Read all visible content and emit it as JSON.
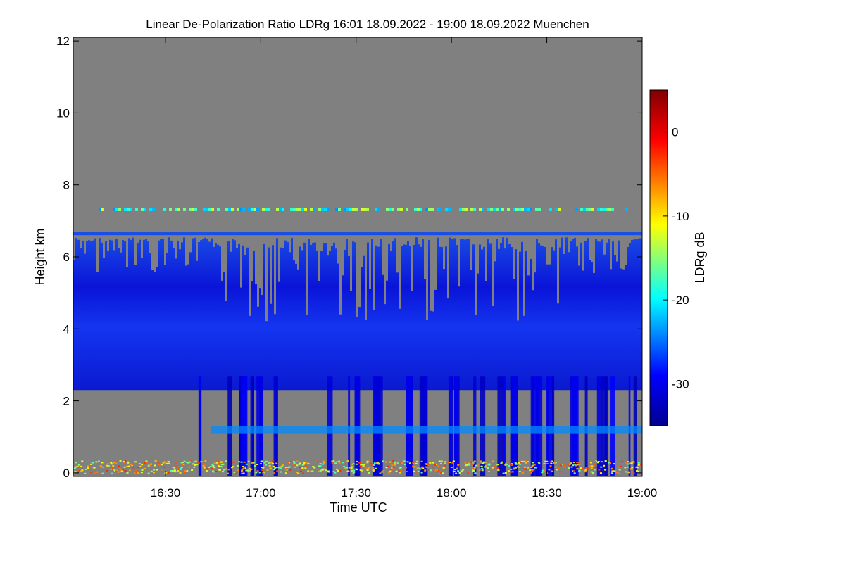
{
  "chart_data": {
    "type": "heatmap",
    "title": "Linear De-Polarization Ratio LDRg   16:01 18.09.2022 - 19:00 18.09.2022 Muenchen",
    "xlabel": "Time UTC",
    "ylabel": "Height km",
    "colorbar_label": "LDRg dB",
    "x_tick_labels": [
      "16:30",
      "17:00",
      "17:30",
      "18:00",
      "18:30",
      "19:00"
    ],
    "x_tick_values_min": [
      990,
      1020,
      1050,
      1080,
      1110,
      1140
    ],
    "xlim_min": [
      961,
      1140
    ],
    "y_tick_labels": [
      "0",
      "2",
      "4",
      "6",
      "8",
      "10",
      "12"
    ],
    "y_tick_values": [
      0,
      2,
      4,
      6,
      8,
      10,
      12
    ],
    "ylim": [
      -0.1,
      12.1
    ],
    "colorbar_tick_labels": [
      "0",
      "-10",
      "-20",
      "-30"
    ],
    "colorbar_tick_values": [
      0,
      -10,
      -20,
      -30
    ],
    "colorbar_range": [
      -35,
      5
    ],
    "colormap": [
      "#00008f",
      "#0000ff",
      "#00ffff",
      "#ffff00",
      "#ff0000",
      "#800000"
    ],
    "no_signal_color": "#808080",
    "layers": [
      {
        "feature": "main depolarization layer",
        "height_km": [
          2.3,
          6.7
        ],
        "ldr_db": -31
      },
      {
        "feature": "thin layer",
        "height_km": [
          7.2,
          7.35
        ],
        "ldr_db": -18
      },
      {
        "feature": "aerosol near ground",
        "height_km": [
          0,
          0.35
        ],
        "ldr_db": -10
      },
      {
        "feature": "low band",
        "height_km": [
          1.1,
          1.3
        ],
        "ldr_db": -24
      }
    ]
  }
}
